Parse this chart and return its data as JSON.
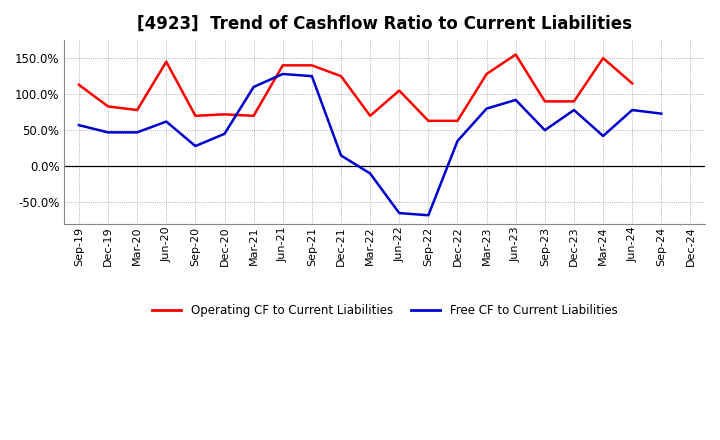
{
  "title": "[4923]  Trend of Cashflow Ratio to Current Liabilities",
  "x_labels": [
    "Sep-19",
    "Dec-19",
    "Mar-20",
    "Jun-20",
    "Sep-20",
    "Dec-20",
    "Mar-21",
    "Jun-21",
    "Sep-21",
    "Dec-21",
    "Mar-22",
    "Jun-22",
    "Sep-22",
    "Dec-22",
    "Mar-23",
    "Jun-23",
    "Sep-23",
    "Dec-23",
    "Mar-24",
    "Jun-24",
    "Sep-24",
    "Dec-24"
  ],
  "operating_cf": [
    113,
    83,
    78,
    145,
    70,
    72,
    70,
    140,
    140,
    125,
    70,
    105,
    63,
    63,
    128,
    155,
    90,
    90,
    150,
    115,
    null,
    null
  ],
  "free_cf": [
    57,
    47,
    47,
    62,
    28,
    45,
    110,
    128,
    125,
    15,
    -10,
    -65,
    -68,
    35,
    80,
    92,
    50,
    78,
    42,
    78,
    73,
    null
  ],
  "ylim": [
    -80,
    175
  ],
  "yticks": [
    -50,
    0,
    50,
    100,
    150
  ],
  "ytick_labels": [
    "-50.0%",
    "0.0%",
    "50.0%",
    "100.0%",
    "150.0%"
  ],
  "operating_color": "#ff0000",
  "free_color": "#0000cc",
  "background_color": "#ffffff",
  "grid_color": "#999999",
  "legend_operating": "Operating CF to Current Liabilities",
  "legend_free": "Free CF to Current Liabilities",
  "title_fontsize": 12,
  "tick_fontsize": 8,
  "ytick_fontsize": 8.5
}
